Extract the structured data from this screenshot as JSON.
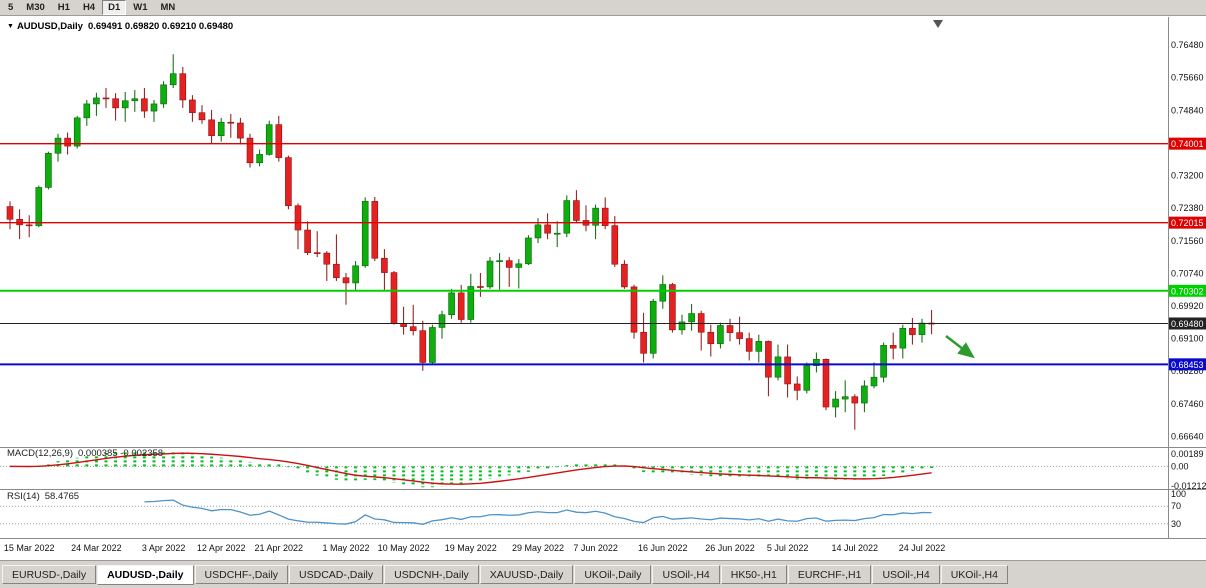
{
  "toolbar": {
    "periods": [
      "5",
      "M30",
      "H1",
      "H4",
      "D1",
      "W1",
      "MN"
    ],
    "active_period": "D1"
  },
  "icons": {
    "title_marker": "▼"
  },
  "header": {
    "title": "AUDUSD,Daily",
    "ohlc": "0.69491 0.69820 0.69210 0.69480"
  },
  "colors": {
    "up": "#0fae0f",
    "up_border": "#066606",
    "down": "#e42222",
    "down_border": "#8f1010",
    "macd_hist": "#00c020",
    "macd_signal": "#cc1111",
    "rsi_line": "#4f93c9",
    "annotation_arrow": "#2d9a2d",
    "badge_text": "#ffffff"
  },
  "chart_data": {
    "type": "candlestick",
    "symbol": "AUDUSD",
    "timeframe": "Daily",
    "ohlc_last": {
      "open": 0.69491,
      "high": 0.6982,
      "low": 0.6921,
      "close": 0.6948
    },
    "price_axis_labels": [
      "0.76480",
      "0.75660",
      "0.74840",
      "0.74020",
      "0.73200",
      "0.72380",
      "0.71560",
      "0.70740",
      "0.69920",
      "0.69100",
      "0.68280",
      "0.67460",
      "0.66640"
    ],
    "price_axis_range": {
      "top": 0.7716,
      "bottom": 0.664
    },
    "horizontal_lines": [
      {
        "name": "resistance-line-upper",
        "price": 0.74001,
        "label": "0.74001",
        "color": "#e00000",
        "width": 1.4
      },
      {
        "name": "resistance-line-lower",
        "price": 0.72015,
        "label": "0.72015",
        "color": "#e00000",
        "width": 1.4
      },
      {
        "name": "support-line-green",
        "price": 0.70302,
        "label": "0.70302",
        "color": "#00d000",
        "width": 2
      },
      {
        "name": "current-price-line",
        "price": 0.6948,
        "label": "0.69480",
        "color": "#222222",
        "width": 1
      },
      {
        "name": "support-line-blue",
        "price": 0.68453,
        "label": "0.68453",
        "color": "#0a0acd",
        "width": 2
      }
    ],
    "candles": [
      [
        0.7242,
        0.7255,
        0.7185,
        0.721
      ],
      [
        0.721,
        0.7235,
        0.716,
        0.7196
      ],
      [
        0.7196,
        0.722,
        0.7165,
        0.7194
      ],
      [
        0.7194,
        0.7295,
        0.719,
        0.729
      ],
      [
        0.729,
        0.738,
        0.7285,
        0.7376
      ],
      [
        0.7376,
        0.7425,
        0.7355,
        0.7414
      ],
      [
        0.7414,
        0.7428,
        0.7373,
        0.7394
      ],
      [
        0.7394,
        0.747,
        0.7388,
        0.7465
      ],
      [
        0.7465,
        0.751,
        0.7445,
        0.75
      ],
      [
        0.75,
        0.7528,
        0.747,
        0.7515
      ],
      [
        0.7515,
        0.754,
        0.749,
        0.7513
      ],
      [
        0.7513,
        0.7527,
        0.7458,
        0.749
      ],
      [
        0.749,
        0.753,
        0.7455,
        0.7508
      ],
      [
        0.7508,
        0.7535,
        0.748,
        0.7513
      ],
      [
        0.7513,
        0.754,
        0.7465,
        0.7482
      ],
      [
        0.7482,
        0.751,
        0.7455,
        0.75
      ],
      [
        0.75,
        0.7557,
        0.749,
        0.7548
      ],
      [
        0.7548,
        0.7625,
        0.754,
        0.7576
      ],
      [
        0.7576,
        0.7593,
        0.749,
        0.751
      ],
      [
        0.751,
        0.7522,
        0.7455,
        0.7478
      ],
      [
        0.7478,
        0.7497,
        0.745,
        0.746
      ],
      [
        0.746,
        0.7485,
        0.74,
        0.742
      ],
      [
        0.742,
        0.7465,
        0.7405,
        0.7454
      ],
      [
        0.7454,
        0.7475,
        0.7415,
        0.7452
      ],
      [
        0.7452,
        0.7465,
        0.7398,
        0.7414
      ],
      [
        0.7414,
        0.7425,
        0.734,
        0.7352
      ],
      [
        0.7352,
        0.7385,
        0.7343,
        0.7373
      ],
      [
        0.7373,
        0.7458,
        0.737,
        0.7448
      ],
      [
        0.7448,
        0.747,
        0.7355,
        0.7365
      ],
      [
        0.7365,
        0.737,
        0.7235,
        0.7244
      ],
      [
        0.7244,
        0.725,
        0.7135,
        0.7183
      ],
      [
        0.7183,
        0.7205,
        0.712,
        0.7126
      ],
      [
        0.7126,
        0.718,
        0.7115,
        0.7125
      ],
      [
        0.7125,
        0.713,
        0.7055,
        0.7097
      ],
      [
        0.7097,
        0.7172,
        0.7055,
        0.7063
      ],
      [
        0.7063,
        0.7075,
        0.6995,
        0.705
      ],
      [
        0.705,
        0.7105,
        0.703,
        0.7093
      ],
      [
        0.7093,
        0.7265,
        0.7088,
        0.7255
      ],
      [
        0.7255,
        0.7266,
        0.7105,
        0.7112
      ],
      [
        0.7112,
        0.7135,
        0.703,
        0.7076
      ],
      [
        0.7076,
        0.708,
        0.6945,
        0.6948
      ],
      [
        0.6948,
        0.699,
        0.692,
        0.694
      ],
      [
        0.694,
        0.6995,
        0.6918,
        0.693
      ],
      [
        0.693,
        0.6955,
        0.6829,
        0.685
      ],
      [
        0.685,
        0.6945,
        0.6845,
        0.6938
      ],
      [
        0.6938,
        0.698,
        0.691,
        0.697
      ],
      [
        0.697,
        0.7035,
        0.696,
        0.7025
      ],
      [
        0.7025,
        0.7045,
        0.695,
        0.6958
      ],
      [
        0.6958,
        0.7073,
        0.695,
        0.7041
      ],
      [
        0.7041,
        0.7075,
        0.7015,
        0.704
      ],
      [
        0.704,
        0.7115,
        0.7035,
        0.7105
      ],
      [
        0.7105,
        0.7125,
        0.7033,
        0.7106
      ],
      [
        0.7106,
        0.7115,
        0.704,
        0.7089
      ],
      [
        0.7089,
        0.711,
        0.7036,
        0.7098
      ],
      [
        0.7098,
        0.717,
        0.7095,
        0.7163
      ],
      [
        0.7163,
        0.7213,
        0.715,
        0.7196
      ],
      [
        0.7196,
        0.7225,
        0.716,
        0.7175
      ],
      [
        0.7175,
        0.7205,
        0.714,
        0.7175
      ],
      [
        0.7175,
        0.727,
        0.7165,
        0.7257
      ],
      [
        0.7257,
        0.7283,
        0.72,
        0.7207
      ],
      [
        0.7207,
        0.7245,
        0.718,
        0.7195
      ],
      [
        0.7195,
        0.7247,
        0.716,
        0.7238
      ],
      [
        0.7238,
        0.7265,
        0.7185,
        0.7194
      ],
      [
        0.7194,
        0.7218,
        0.709,
        0.7097
      ],
      [
        0.7097,
        0.7107,
        0.7035,
        0.704
      ],
      [
        0.704,
        0.7045,
        0.691,
        0.6926
      ],
      [
        0.6926,
        0.6975,
        0.685,
        0.6873
      ],
      [
        0.6873,
        0.701,
        0.686,
        0.7004
      ],
      [
        0.7004,
        0.7069,
        0.6985,
        0.7046
      ],
      [
        0.7046,
        0.705,
        0.6925,
        0.6932
      ],
      [
        0.6932,
        0.697,
        0.692,
        0.6952
      ],
      [
        0.6952,
        0.6997,
        0.693,
        0.6973
      ],
      [
        0.6973,
        0.698,
        0.688,
        0.6926
      ],
      [
        0.6926,
        0.6945,
        0.6865,
        0.6897
      ],
      [
        0.6897,
        0.695,
        0.6885,
        0.6943
      ],
      [
        0.6943,
        0.696,
        0.6903,
        0.6925
      ],
      [
        0.6925,
        0.6965,
        0.6895,
        0.691
      ],
      [
        0.691,
        0.6925,
        0.6855,
        0.6878
      ],
      [
        0.6878,
        0.692,
        0.685,
        0.6903
      ],
      [
        0.6903,
        0.6905,
        0.6765,
        0.6813
      ],
      [
        0.6813,
        0.6895,
        0.6805,
        0.6864
      ],
      [
        0.6864,
        0.6895,
        0.6762,
        0.6796
      ],
      [
        0.6796,
        0.6815,
        0.6755,
        0.678
      ],
      [
        0.678,
        0.685,
        0.6772,
        0.6842
      ],
      [
        0.6842,
        0.6875,
        0.6825,
        0.6858
      ],
      [
        0.6858,
        0.686,
        0.673,
        0.6738
      ],
      [
        0.6738,
        0.6778,
        0.6712,
        0.6758
      ],
      [
        0.6758,
        0.6805,
        0.6725,
        0.6764
      ],
      [
        0.6764,
        0.677,
        0.6681,
        0.6748
      ],
      [
        0.6748,
        0.6805,
        0.6725,
        0.6791
      ],
      [
        0.6791,
        0.685,
        0.6785,
        0.6813
      ],
      [
        0.6813,
        0.69,
        0.68,
        0.6893
      ],
      [
        0.6893,
        0.6925,
        0.6858,
        0.6886
      ],
      [
        0.6886,
        0.6945,
        0.686,
        0.6936
      ],
      [
        0.6936,
        0.6962,
        0.6895,
        0.692
      ],
      [
        0.692,
        0.696,
        0.69,
        0.6949
      ],
      [
        0.69491,
        0.6982,
        0.6921,
        0.6948
      ]
    ],
    "date_labels": [
      {
        "text": "15 Mar 2022",
        "i": 2
      },
      {
        "text": "24 Mar 2022",
        "i": 9
      },
      {
        "text": "3 Apr 2022",
        "i": 16
      },
      {
        "text": "12 Apr 2022",
        "i": 22
      },
      {
        "text": "21 Apr 2022",
        "i": 28
      },
      {
        "text": "1 May 2022",
        "i": 35
      },
      {
        "text": "10 May 2022",
        "i": 41
      },
      {
        "text": "19 May 2022",
        "i": 48
      },
      {
        "text": "29 May 2022",
        "i": 55
      },
      {
        "text": "7 Jun 2022",
        "i": 61
      },
      {
        "text": "16 Jun 2022",
        "i": 68
      },
      {
        "text": "26 Jun 2022",
        "i": 75
      },
      {
        "text": "5 Jul 2022",
        "i": 81
      },
      {
        "text": "14 Jul 2022",
        "i": 88
      },
      {
        "text": "24 Jul 2022",
        "i": 95
      }
    ],
    "indicators": {
      "macd": {
        "label": "MACD(12,26,9)",
        "values": "0.000385 -0.002358",
        "axis_labels": [
          "0.00189",
          "0.00",
          "-0.01212"
        ]
      },
      "rsi": {
        "label": "RSI(14)",
        "value": "58.4765",
        "axis_labels": [
          "100",
          "70",
          "30"
        ],
        "levels": [
          70,
          30
        ]
      }
    }
  },
  "tabs": [
    {
      "label": "EURUSD-,Daily"
    },
    {
      "label": "AUDUSD-,Daily"
    },
    {
      "label": "USDCHF-,Daily"
    },
    {
      "label": "USDCAD-,Daily"
    },
    {
      "label": "USDCNH-,Daily"
    },
    {
      "label": "XAUUSD-,Daily"
    },
    {
      "label": "UKOil-,Daily"
    },
    {
      "label": "USOil-,H4"
    },
    {
      "label": "HK50-,H1"
    },
    {
      "label": "EURCHF-,H1"
    },
    {
      "label": "USOil-,H4"
    },
    {
      "label": "UKOil-,H4"
    }
  ],
  "active_tab_index": 1
}
